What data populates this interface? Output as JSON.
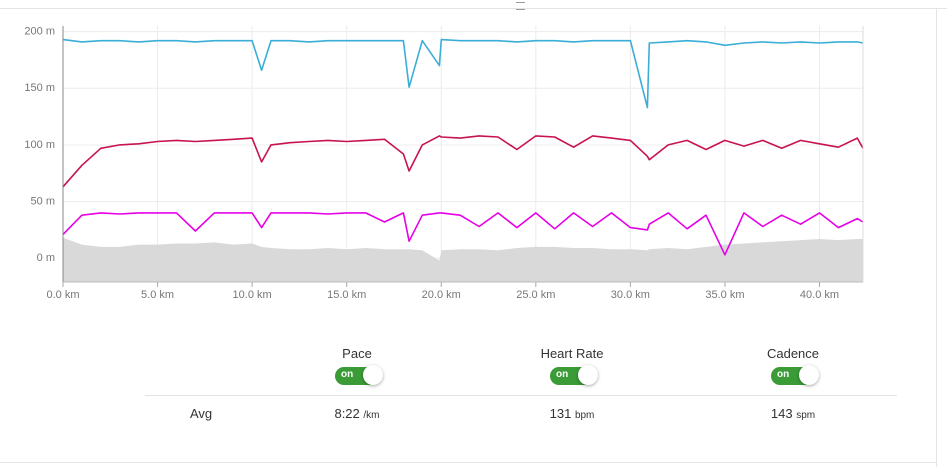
{
  "chart_data": {
    "type": "line",
    "x": [
      0,
      1,
      2,
      3,
      4,
      5,
      6,
      7,
      8,
      9,
      10,
      10.5,
      11,
      12,
      13,
      14,
      15,
      16,
      17,
      18,
      18.3,
      19,
      19.9,
      20,
      21,
      22,
      23,
      24,
      25,
      26,
      27,
      28,
      29,
      30,
      30.9,
      31,
      32,
      33,
      34,
      35,
      36,
      37,
      38,
      39,
      40,
      41,
      42,
      42.3
    ],
    "series": [
      {
        "color": "#3aaed8",
        "values": [
          193,
          191,
          192,
          192,
          191,
          192,
          192,
          191,
          192,
          192,
          192,
          166,
          192,
          192,
          191,
          192,
          192,
          192,
          192,
          192,
          151,
          192,
          170,
          193,
          192,
          192,
          192,
          191,
          192,
          192,
          191,
          192,
          192,
          192,
          133,
          190,
          191,
          192,
          191,
          188,
          190,
          191,
          190,
          191,
          190,
          191,
          191,
          190
        ]
      },
      {
        "color": "#c8134c",
        "values": [
          63,
          82,
          97,
          100,
          101,
          103,
          104,
          103,
          104,
          105,
          106,
          85,
          100,
          102,
          103,
          104,
          103,
          104,
          105,
          92,
          77,
          100,
          108,
          107,
          106,
          108,
          107,
          96,
          108,
          107,
          98,
          108,
          106,
          104,
          90,
          87,
          100,
          104,
          96,
          104,
          99,
          104,
          97,
          104,
          101,
          98,
          106,
          97
        ]
      },
      {
        "color": "#e600e6",
        "values": [
          21,
          38,
          40,
          39,
          40,
          40,
          40,
          24,
          40,
          40,
          40,
          27,
          40,
          40,
          40,
          39,
          40,
          40,
          32,
          40,
          15,
          38,
          40,
          40,
          38,
          28,
          40,
          27,
          40,
          26,
          40,
          28,
          40,
          27,
          25,
          30,
          40,
          26,
          38,
          3,
          40,
          28,
          38,
          30,
          40,
          27,
          35,
          32
        ]
      },
      {
        "color": "#d9d9d9",
        "area": true,
        "values": [
          18,
          12,
          10,
          10,
          12,
          12,
          13,
          13,
          14,
          12,
          13,
          10,
          9,
          8,
          8,
          9,
          8,
          9,
          8,
          8,
          8,
          7,
          -2,
          7,
          8,
          8,
          7,
          9,
          10,
          10,
          9,
          9,
          8,
          8,
          7,
          8,
          9,
          8,
          10,
          12,
          13,
          14,
          15,
          16,
          17,
          16,
          17,
          17
        ]
      }
    ],
    "xlim": [
      0,
      42.3
    ],
    "ylim": [
      -21,
      205
    ],
    "xticks": [
      {
        "value": 0,
        "label": "0.0 km"
      },
      {
        "value": 5,
        "label": "5.0 km"
      },
      {
        "value": 10,
        "label": "10.0 km"
      },
      {
        "value": 15,
        "label": "15.0 km"
      },
      {
        "value": 20,
        "label": "20.0 km"
      },
      {
        "value": 25,
        "label": "25.0 km"
      },
      {
        "value": 30,
        "label": "30.0 km"
      },
      {
        "value": 35,
        "label": "35.0 km"
      },
      {
        "value": 40,
        "label": "40.0 km"
      }
    ],
    "yticks": [
      {
        "value": 0,
        "label": "0 m"
      },
      {
        "value": 50,
        "label": "50 m"
      },
      {
        "value": 100,
        "label": "100 m"
      },
      {
        "value": 150,
        "label": "150 m"
      },
      {
        "value": 200,
        "label": "200 m"
      }
    ],
    "grid": true
  },
  "toggles": [
    {
      "label": "Pace",
      "state": "on"
    },
    {
      "label": "Heart Rate",
      "state": "on"
    },
    {
      "label": "Cadence",
      "state": "on"
    }
  ],
  "avg": {
    "label": "Avg",
    "items": [
      {
        "value": "8:22",
        "unit": "/km"
      },
      {
        "value": "131",
        "unit": "bpm"
      },
      {
        "value": "143",
        "unit": "spm"
      }
    ]
  }
}
